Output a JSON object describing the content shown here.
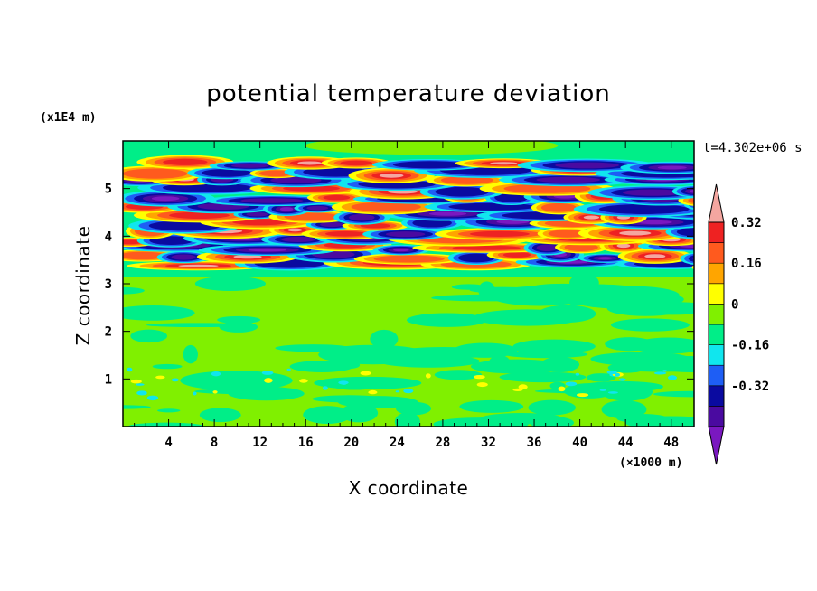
{
  "chart_data": {
    "type": "heatmap",
    "title": "potential temperature deviation",
    "xlabel": "X coordinate",
    "ylabel": "Z coordinate",
    "x_unit": "(×1000 m)",
    "y_unit": "(x1E4 m)",
    "time_label": "t=4.302e+06 s",
    "xlim": [
      0,
      50
    ],
    "ylim": [
      0,
      6
    ],
    "x_ticks": [
      4,
      8,
      12,
      16,
      20,
      24,
      28,
      32,
      36,
      40,
      44,
      48
    ],
    "y_ticks": [
      1,
      2,
      3,
      4,
      5
    ],
    "colorbar": {
      "levels": [
        -0.48,
        -0.4,
        -0.32,
        -0.24,
        -0.16,
        -0.08,
        0,
        0.08,
        0.16,
        0.24,
        0.32,
        0.4
      ],
      "colors": [
        "#7a18c0",
        "#4a0aa0",
        "#0a0aa0",
        "#1e5ef5",
        "#10e6ee",
        "#00ee88",
        "#80f000",
        "#ffff00",
        "#ffa500",
        "#ff5a1e",
        "#ee2222",
        "#f4a6a0"
      ],
      "tick_labels": [
        "0.32",
        "0.16",
        "0",
        "-0.16",
        "-0.32"
      ],
      "tick_values": [
        0.32,
        0.16,
        0,
        -0.16,
        -0.32
      ]
    },
    "bands": [
      {
        "z_min": 0.0,
        "z_max": 3.2,
        "description": "weak perturbations between -0.08 and 0.08"
      },
      {
        "z_min": 3.2,
        "z_max": 5.6,
        "description": "strong layered oscillations between -0.48 and 0.4"
      },
      {
        "z_min": 5.6,
        "z_max": 6.0,
        "description": "near zero"
      }
    ]
  }
}
